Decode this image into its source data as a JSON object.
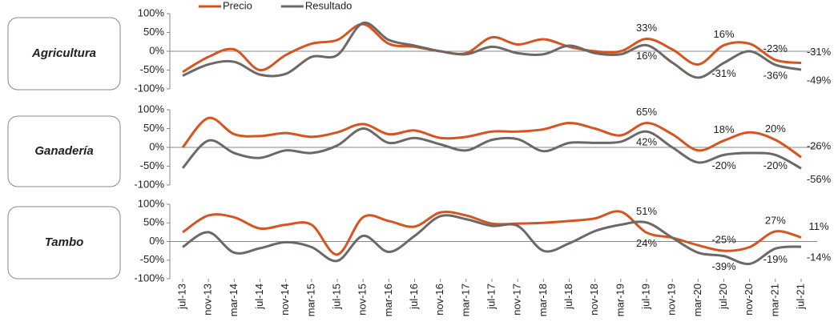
{
  "chart_data": [
    {
      "type": "line",
      "title": "Agricultura",
      "ylim": [
        -100,
        100
      ],
      "yticks": [
        {
          "value": -100,
          "label": "-100%"
        },
        {
          "value": -50,
          "label": "-50%"
        },
        {
          "value": 0,
          "label": "0%"
        },
        {
          "value": 50,
          "label": "50%"
        },
        {
          "value": 100,
          "label": "100%"
        }
      ],
      "series": [
        {
          "name": "Precio",
          "color": "#d9531e",
          "values": [
            -55,
            -15,
            5,
            -50,
            -10,
            20,
            30,
            72,
            20,
            12,
            0,
            -5,
            37,
            18,
            32,
            12,
            0,
            0,
            33,
            5,
            -35,
            16,
            20,
            -23,
            -31
          ],
          "value_labels": [
            null,
            null,
            null,
            null,
            null,
            null,
            null,
            null,
            null,
            null,
            null,
            null,
            null,
            null,
            null,
            null,
            null,
            null,
            "33%",
            null,
            null,
            "16%",
            null,
            "-23%",
            "-31%"
          ]
        },
        {
          "name": "Resultado",
          "color": "#6f6666",
          "values": [
            -65,
            -35,
            -28,
            -62,
            -60,
            -15,
            -10,
            75,
            30,
            15,
            0,
            -8,
            12,
            -5,
            -8,
            15,
            -5,
            -8,
            16,
            -30,
            -70,
            -31,
            0,
            -36,
            -49
          ],
          "value_labels": [
            null,
            null,
            null,
            null,
            null,
            null,
            null,
            null,
            null,
            null,
            null,
            null,
            null,
            null,
            null,
            null,
            null,
            null,
            "16%",
            null,
            null,
            "-31%",
            null,
            "-36%",
            "-49%"
          ]
        }
      ]
    },
    {
      "type": "line",
      "title": "Ganadería",
      "ylim": [
        -100,
        100
      ],
      "yticks": [
        {
          "value": -100,
          "label": "-100%"
        },
        {
          "value": -50,
          "label": "-50%"
        },
        {
          "value": 0,
          "label": "0%"
        },
        {
          "value": 50,
          "label": "50%"
        },
        {
          "value": 100,
          "label": "100%"
        }
      ],
      "series": [
        {
          "color": "#d9531e",
          "values": [
            0,
            78,
            35,
            30,
            38,
            28,
            40,
            62,
            35,
            45,
            25,
            28,
            42,
            42,
            48,
            65,
            50,
            32,
            65,
            35,
            -8,
            18,
            40,
            20,
            -26
          ],
          "value_labels": [
            null,
            null,
            null,
            null,
            null,
            null,
            null,
            null,
            null,
            null,
            null,
            null,
            null,
            null,
            null,
            null,
            null,
            null,
            "65%",
            null,
            null,
            "18%",
            null,
            "20%",
            "-26%"
          ]
        },
        {
          "color": "#6f6666",
          "values": [
            -55,
            18,
            -15,
            -28,
            -8,
            -15,
            5,
            50,
            12,
            25,
            8,
            -8,
            20,
            22,
            -10,
            12,
            12,
            15,
            42,
            0,
            -40,
            -20,
            -15,
            -20,
            -56
          ],
          "value_labels": [
            null,
            null,
            null,
            null,
            null,
            null,
            null,
            null,
            null,
            null,
            null,
            null,
            null,
            null,
            null,
            null,
            null,
            null,
            "42%",
            null,
            null,
            "-20%",
            null,
            "-20%",
            "-56%"
          ]
        }
      ]
    },
    {
      "type": "line",
      "title": "Tambo",
      "ylim": [
        -100,
        100
      ],
      "yticks": [
        {
          "value": -100,
          "label": "-100%"
        },
        {
          "value": -50,
          "label": "-50%"
        },
        {
          "value": 0,
          "label": "0%"
        },
        {
          "value": 50,
          "label": "50%"
        },
        {
          "value": 100,
          "label": "100%"
        }
      ],
      "categories": [
        "jul-13",
        "nov-13",
        "mar-14",
        "jul-14",
        "nov-14",
        "mar-15",
        "jul-15",
        "nov-15",
        "mar-16",
        "jul-16",
        "nov-16",
        "mar-17",
        "jul-17",
        "nov-17",
        "mar-18",
        "jul-18",
        "nov-18",
        "mar-19",
        "jul-19",
        "nov-19",
        "mar-20",
        "jul-20",
        "nov-20",
        "mar-21",
        "jul-21"
      ],
      "series": [
        {
          "color": "#d9531e",
          "values": [
            25,
            70,
            65,
            35,
            45,
            45,
            -35,
            65,
            55,
            40,
            78,
            70,
            48,
            48,
            50,
            55,
            62,
            80,
            24,
            10,
            -10,
            -25,
            -15,
            27,
            11
          ],
          "value_labels": [
            null,
            null,
            null,
            null,
            null,
            null,
            null,
            null,
            null,
            null,
            null,
            null,
            null,
            null,
            null,
            null,
            null,
            null,
            "24%",
            null,
            null,
            "-25%",
            null,
            "27%",
            "11%"
          ]
        },
        {
          "color": "#6f6666",
          "values": [
            -15,
            25,
            -30,
            -18,
            -2,
            -15,
            -52,
            15,
            -28,
            15,
            68,
            60,
            42,
            42,
            -25,
            -5,
            28,
            45,
            51,
            10,
            -30,
            -39,
            -60,
            -19,
            -14
          ],
          "value_labels": [
            null,
            null,
            null,
            null,
            null,
            null,
            null,
            null,
            null,
            null,
            null,
            null,
            null,
            null,
            null,
            null,
            null,
            null,
            "51%",
            null,
            null,
            "-39%",
            null,
            "-19%",
            "-14%"
          ]
        }
      ]
    }
  ]
}
